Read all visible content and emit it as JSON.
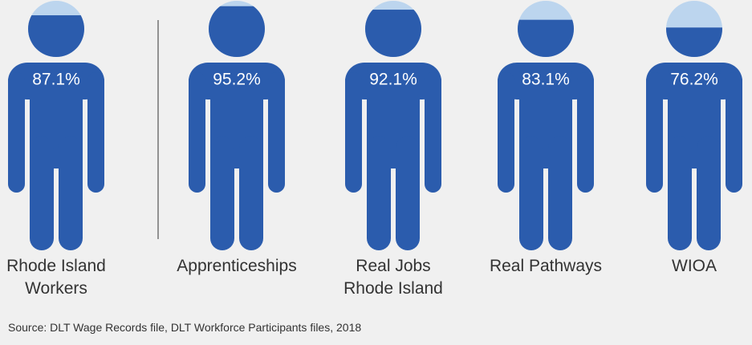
{
  "chart_data": {
    "type": "pictograph",
    "categories": [
      "Rhode Island\nWorkers",
      "Apprenticeships",
      "Real Jobs\nRhode Island",
      "Real Pathways",
      "WIOA"
    ],
    "values": [
      87.1,
      95.2,
      92.1,
      83.1,
      76.2
    ],
    "value_labels": [
      "87.1%",
      "95.2%",
      "92.1%",
      "83.1%",
      "76.2%"
    ],
    "ylim": [
      50,
      100
    ],
    "color": "#2b5cad",
    "empty_color": "#bcd5ee",
    "source": "Source: DLT Wage Records file, DLT Workforce Participants files, 2018"
  }
}
